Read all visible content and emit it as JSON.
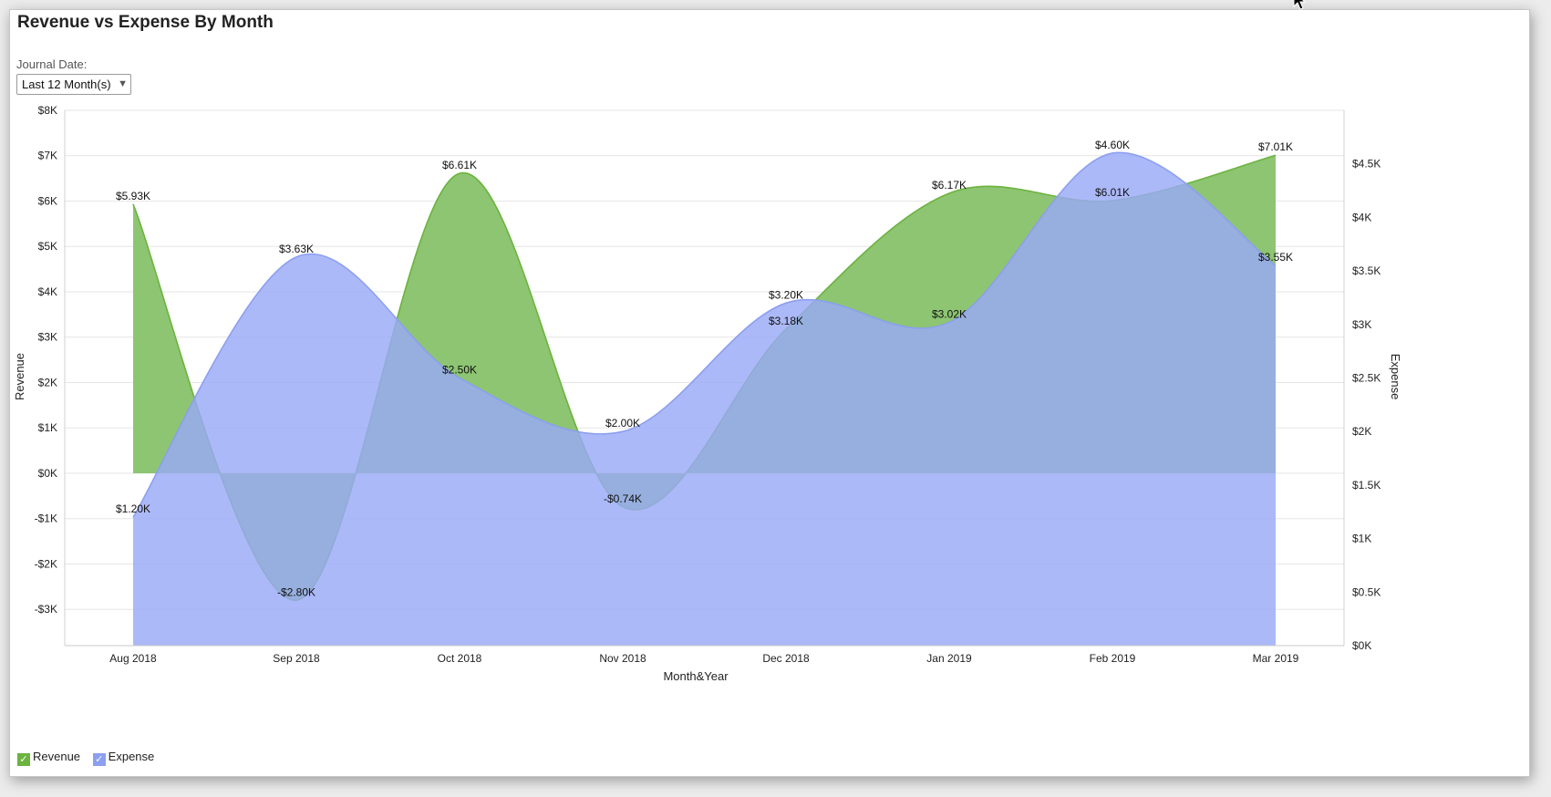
{
  "report": {
    "title": "Revenue vs Expense By Month",
    "filter_label": "Journal Date:",
    "filter_value": "Last 12 Month(s)",
    "filter_icon": "chevron-down-icon"
  },
  "legend": {
    "check_icon": "checkmark-icon",
    "revenue_label": "Revenue",
    "expense_label": "Expense"
  },
  "chart_data": {
    "type": "area",
    "title": "",
    "xlabel": "Month&Year",
    "ylabel_left": "Revenue",
    "ylabel_right": "Expense",
    "categories": [
      "Aug 2018",
      "Sep 2018",
      "Oct 2018",
      "Nov 2018",
      "Dec 2018",
      "Jan 2019",
      "Feb 2019",
      "Mar 2019"
    ],
    "y_left": {
      "min": -3.8,
      "max": 8,
      "ticks": [
        8,
        7,
        6,
        5,
        4,
        3,
        2,
        1,
        0,
        -1,
        -2,
        -3
      ],
      "tick_labels": [
        "$8K",
        "$7K",
        "$6K",
        "$5K",
        "$4K",
        "$3K",
        "$2K",
        "$1K",
        "$0K",
        "-$1K",
        "-$2K",
        "-$3K"
      ]
    },
    "y_right": {
      "min": 0,
      "max": 5,
      "ticks": [
        4.5,
        4,
        3.5,
        3,
        2.5,
        2,
        1.5,
        1,
        0.5,
        0
      ],
      "tick_labels": [
        "$4.5K",
        "$4K",
        "$3.5K",
        "$3K",
        "$2.5K",
        "$2K",
        "$1.5K",
        "$1K",
        "$0.5K",
        "$0K"
      ]
    },
    "grid": true,
    "legend_position": "bottom-left",
    "series": [
      {
        "name": "Revenue",
        "axis": "left",
        "color": "#6cb33f",
        "fill": "#8dc572",
        "values": [
          5.93,
          -2.8,
          6.61,
          -0.74,
          3.18,
          6.17,
          6.01,
          7.01
        ],
        "labels": [
          "$5.93K",
          "-$2.80K",
          "$6.61K",
          "-$0.74K",
          "$3.18K",
          "$6.17K",
          "$6.01K",
          "$7.01K"
        ]
      },
      {
        "name": "Expense",
        "axis": "right",
        "color": "#8c9ff0",
        "fill": "#9aa9f6",
        "values": [
          1.2,
          3.63,
          2.5,
          2.0,
          3.2,
          3.02,
          4.6,
          3.55
        ],
        "labels": [
          "$1.20K",
          "$3.63K",
          "$2.50K",
          "$2.00K",
          "$3.20K",
          "$3.02K",
          "$4.60K",
          "$3.55K"
        ]
      }
    ]
  }
}
